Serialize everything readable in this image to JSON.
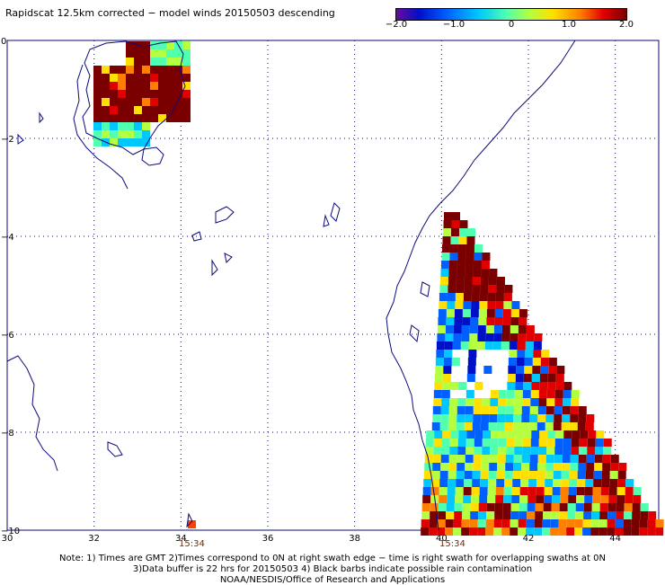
{
  "header": {
    "title": "Rapidscat 12.5km corrected − model winds 20150503 descending"
  },
  "colorbar": {
    "tick_labels": [
      "−2.0",
      "−1.0",
      "0",
      "1.0",
      "2.0"
    ],
    "range": [
      -2.0,
      2.0
    ]
  },
  "axes": {
    "x_ticks": [
      "30",
      "32",
      "34",
      "36",
      "38",
      "40",
      "42",
      "44"
    ],
    "y_ticks": [
      "0",
      "−2",
      "−4",
      "−6",
      "−8",
      "−10"
    ],
    "x_range": [
      30,
      45
    ],
    "y_range": [
      0,
      -10
    ]
  },
  "swath_times": [
    {
      "lon": 34.25,
      "label": "15:34"
    },
    {
      "lon": 40.25,
      "label": "15:34"
    }
  ],
  "footer": {
    "line1": "Note: 1) Times are GMT 2)Times correspond to 0N at right swath edge − time is right swath for overlapping swaths at 0N",
    "line2": "3)Data buffer is 22 hrs for 20150503 4) Black barbs indicate possible rain contamination",
    "line3": "NOAA/NESDIS/Office of Research and Applications"
  },
  "colors": {
    "land_outline": "#0b0b7a",
    "grid": "#0b0b7a"
  }
}
